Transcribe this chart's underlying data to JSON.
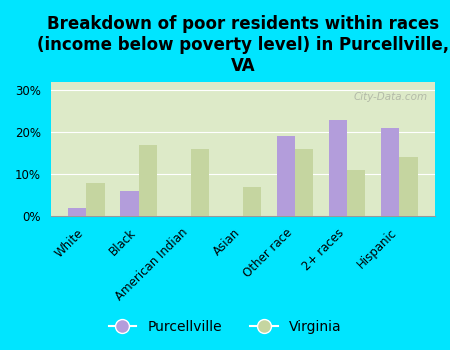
{
  "title": "Breakdown of poor residents within races\n(income below poverty level) in Purcellville,\nVA",
  "categories": [
    "White",
    "Black",
    "American Indian",
    "Asian",
    "Other race",
    "2+ races",
    "Hispanic"
  ],
  "purcellville": [
    2,
    6,
    0,
    0,
    19,
    23,
    21
  ],
  "virginia": [
    8,
    17,
    16,
    7,
    16,
    11,
    14
  ],
  "purcellville_color": "#b39ddb",
  "virginia_color": "#c5d5a0",
  "background_outer": "#00e5ff",
  "background_plot": "#ddeac8",
  "ylim": [
    0,
    32
  ],
  "yticks": [
    0,
    10,
    20,
    30
  ],
  "ytick_labels": [
    "0%",
    "10%",
    "20%",
    "30%"
  ],
  "legend_purcellville": "Purcellville",
  "legend_virginia": "Virginia",
  "watermark": "City-Data.com",
  "title_fontsize": 12,
  "tick_fontsize": 8.5,
  "legend_fontsize": 10
}
